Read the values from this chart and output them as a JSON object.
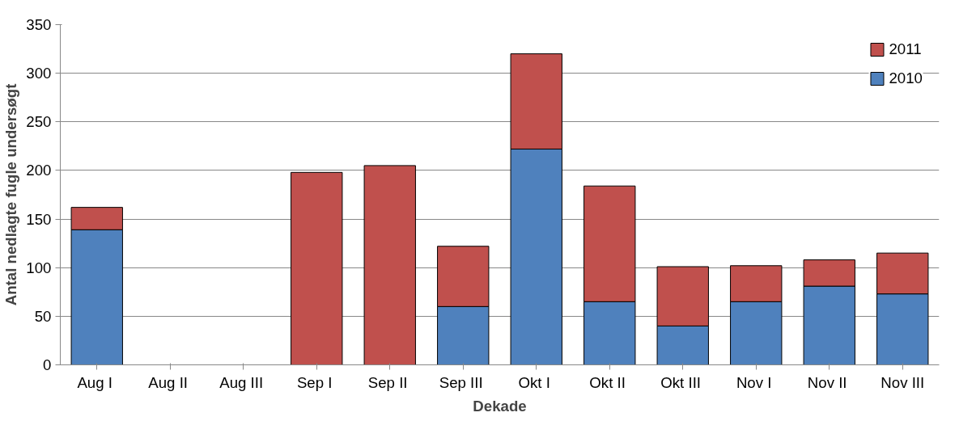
{
  "chart_data": {
    "type": "bar",
    "stacked": true,
    "xlabel": "Dekade",
    "ylabel": "Antal nedlagte fugle undersøgt",
    "categories": [
      "Aug  I",
      "Aug  II",
      "Aug  III",
      "Sep  I",
      "Sep  II",
      "Sep  III",
      "Okt  I",
      "Okt  II",
      "Okt  III",
      "Nov  I",
      "Nov  II",
      "Nov III"
    ],
    "series": [
      {
        "name": "2010",
        "color": "#4f81bd",
        "values": [
          139,
          null,
          null,
          null,
          null,
          60,
          222,
          65,
          40,
          65,
          81,
          73
        ]
      },
      {
        "name": "2011",
        "color": "#c0504d",
        "values": [
          23,
          null,
          null,
          198,
          205,
          62,
          98,
          119,
          61,
          37,
          27,
          42
        ]
      }
    ],
    "ylim": [
      0,
      350
    ],
    "yticks": [
      0,
      50,
      100,
      150,
      200,
      250,
      300,
      350
    ],
    "grid": "y",
    "legend": "top right"
  }
}
